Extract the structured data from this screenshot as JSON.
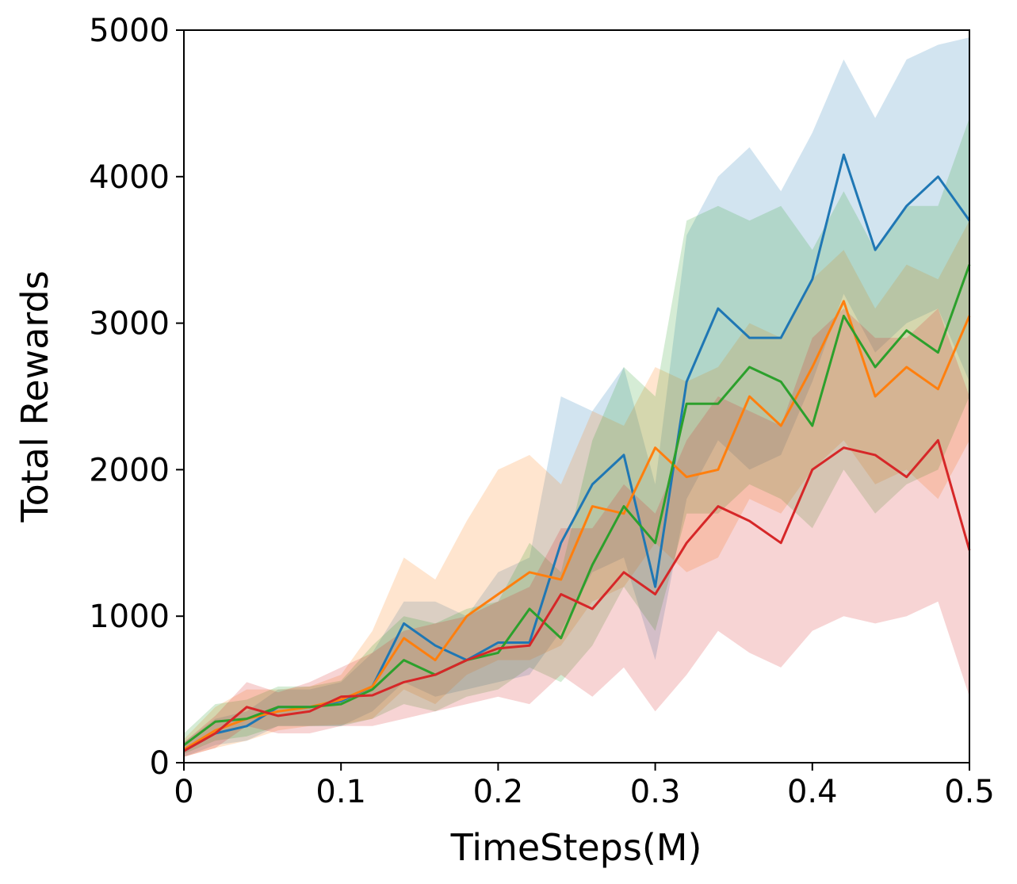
{
  "chart_data": {
    "type": "line",
    "title": "",
    "xlabel": "TimeSteps(M)",
    "ylabel": "Total Rewards",
    "xlim": [
      0,
      0.5
    ],
    "ylim": [
      0,
      5000
    ],
    "xticks": [
      0,
      0.1,
      0.2,
      0.3,
      0.4,
      0.5
    ],
    "xtick_labels": [
      "0",
      "0.1",
      "0.2",
      "0.3",
      "0.4",
      "0.5"
    ],
    "yticks": [
      0,
      1000,
      2000,
      3000,
      4000,
      5000
    ],
    "ytick_labels": [
      "0",
      "1000",
      "2000",
      "3000",
      "4000",
      "5000"
    ],
    "grid": false,
    "legend": "none",
    "shaded_band": "min-max spread around each mean line",
    "x": [
      0,
      0.02,
      0.04,
      0.06,
      0.08,
      0.1,
      0.12,
      0.14,
      0.16,
      0.18,
      0.2,
      0.22,
      0.24,
      0.26,
      0.28,
      0.3,
      0.32,
      0.34,
      0.36,
      0.38,
      0.4,
      0.42,
      0.44,
      0.46,
      0.48,
      0.5
    ],
    "series": [
      {
        "color": "#1f77b4",
        "values": [
          80,
          200,
          250,
          380,
          380,
          420,
          520,
          950,
          800,
          700,
          820,
          820,
          1500,
          1900,
          2100,
          1200,
          2600,
          3100,
          2900,
          2900,
          3300,
          4150,
          3500,
          3800,
          4000,
          3700
        ],
        "lower": [
          40,
          120,
          150,
          250,
          250,
          250,
          350,
          550,
          450,
          500,
          550,
          600,
          900,
          1300,
          1400,
          700,
          1800,
          2200,
          2000,
          2100,
          2600,
          3200,
          2800,
          3000,
          3100,
          2600
        ],
        "upper": [
          140,
          300,
          350,
          500,
          500,
          550,
          750,
          1100,
          1100,
          1000,
          1300,
          1400,
          2500,
          2400,
          2700,
          1900,
          3600,
          4000,
          4200,
          3900,
          4300,
          4800,
          4400,
          4800,
          4900,
          4950
        ]
      },
      {
        "color": "#ff7f0e",
        "values": [
          90,
          220,
          300,
          350,
          380,
          430,
          520,
          850,
          700,
          1000,
          1150,
          1300,
          1250,
          1750,
          1700,
          2150,
          1950,
          2000,
          2500,
          2300,
          2700,
          3150,
          2500,
          2700,
          2550,
          3050
        ],
        "lower": [
          40,
          100,
          150,
          220,
          250,
          260,
          300,
          500,
          400,
          600,
          700,
          700,
          800,
          1100,
          1200,
          1500,
          1300,
          1400,
          1800,
          1700,
          2000,
          2200,
          1900,
          2000,
          1800,
          2200
        ],
        "upper": [
          160,
          380,
          500,
          500,
          520,
          600,
          900,
          1400,
          1250,
          1650,
          2000,
          2100,
          1900,
          2400,
          2300,
          2700,
          2600,
          2700,
          3000,
          2900,
          3300,
          3500,
          3100,
          3400,
          3300,
          3700
        ]
      },
      {
        "color": "#2ca02c",
        "values": [
          120,
          280,
          300,
          380,
          380,
          400,
          500,
          700,
          600,
          700,
          750,
          1050,
          850,
          1350,
          1750,
          1500,
          2450,
          2450,
          2700,
          2600,
          2300,
          3050,
          2700,
          2950,
          2800,
          3400
        ],
        "lower": [
          60,
          150,
          180,
          250,
          250,
          250,
          300,
          400,
          350,
          450,
          500,
          650,
          550,
          800,
          1200,
          900,
          1700,
          1700,
          1900,
          1800,
          1600,
          2000,
          1700,
          1900,
          2000,
          2500
        ],
        "upper": [
          200,
          400,
          430,
          520,
          520,
          560,
          800,
          1000,
          950,
          1050,
          1100,
          1500,
          1300,
          2200,
          2700,
          2500,
          3700,
          3800,
          3700,
          3800,
          3500,
          3900,
          3500,
          3800,
          3800,
          4400
        ]
      },
      {
        "color": "#d62728",
        "values": [
          80,
          200,
          380,
          320,
          350,
          450,
          460,
          550,
          600,
          700,
          780,
          800,
          1150,
          1050,
          1300,
          1150,
          1500,
          1750,
          1650,
          1500,
          2000,
          2150,
          2100,
          1950,
          2200,
          1450
        ],
        "lower": [
          40,
          100,
          250,
          200,
          200,
          250,
          250,
          300,
          350,
          400,
          450,
          400,
          600,
          450,
          650,
          350,
          600,
          900,
          750,
          650,
          900,
          1000,
          950,
          1000,
          1100,
          450
        ],
        "upper": [
          140,
          320,
          550,
          480,
          550,
          650,
          750,
          900,
          950,
          1000,
          1100,
          1200,
          1600,
          1600,
          1900,
          1700,
          2200,
          2500,
          2400,
          2300,
          2900,
          3100,
          2900,
          2900,
          3100,
          2500
        ]
      }
    ]
  }
}
